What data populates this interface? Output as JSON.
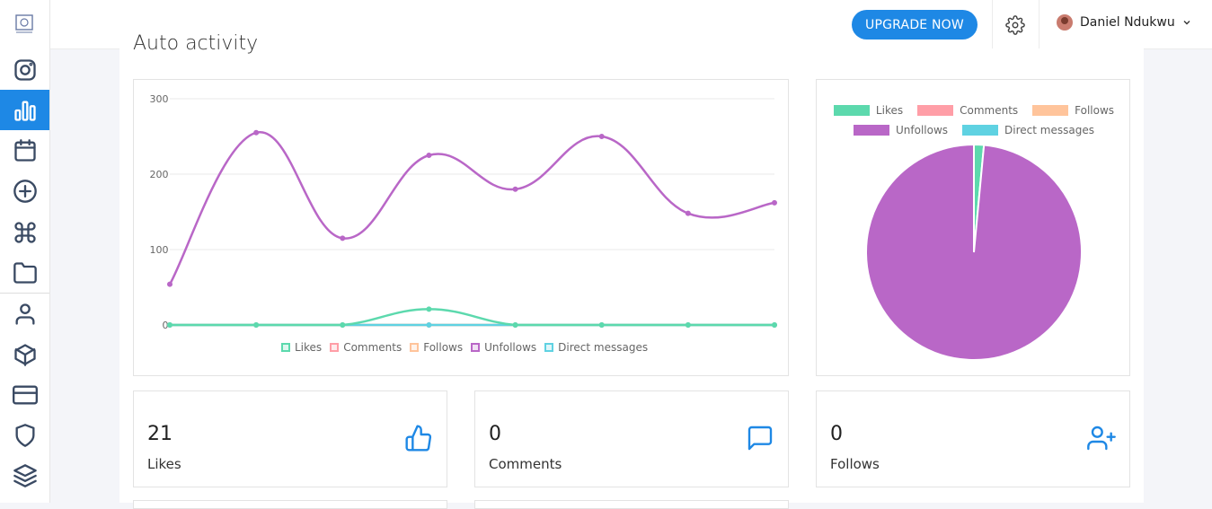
{
  "topbar": {
    "upgrade_label": "UPGRADE NOW",
    "user_name": "Daniel Ndukwu"
  },
  "sidebar": {
    "items": [
      {
        "icon": "instagram-icon"
      },
      {
        "icon": "bar-chart-icon",
        "active": true
      },
      {
        "icon": "calendar-icon"
      },
      {
        "icon": "plus-circle-icon"
      },
      {
        "icon": "command-icon"
      },
      {
        "icon": "folder-icon"
      },
      {
        "icon": "user-icon"
      },
      {
        "icon": "box-icon"
      },
      {
        "icon": "credit-card-icon"
      },
      {
        "icon": "shield-icon"
      },
      {
        "icon": "layers-icon"
      }
    ]
  },
  "section": {
    "title": "Auto activity"
  },
  "chart_data": [
    {
      "type": "line",
      "title": "",
      "ylim": [
        0,
        300
      ],
      "y_ticks": [
        "0",
        "100",
        "200",
        "300"
      ],
      "x": [
        1,
        2,
        3,
        4,
        5,
        6,
        7,
        8
      ],
      "series": [
        {
          "name": "Likes",
          "color": "#5cd9ad",
          "values": [
            0,
            0,
            0,
            21,
            0,
            0,
            0,
            0
          ]
        },
        {
          "name": "Comments",
          "color": "#ff9ea7",
          "values": [
            0,
            0,
            0,
            0,
            0,
            0,
            0,
            0
          ]
        },
        {
          "name": "Follows",
          "color": "#ffc49b",
          "values": [
            0,
            0,
            0,
            0,
            0,
            0,
            0,
            0
          ]
        },
        {
          "name": "Unfollows",
          "color": "#b967c7",
          "values": [
            54,
            255,
            115,
            225,
            180,
            250,
            148,
            162
          ]
        },
        {
          "name": "Direct messages",
          "color": "#5fd2e2",
          "values": [
            0,
            0,
            0,
            0,
            0,
            0,
            0,
            0
          ]
        }
      ],
      "legend": "bottom",
      "grid": true
    },
    {
      "type": "pie",
      "labels": [
        "Likes",
        "Comments",
        "Follows",
        "Unfollows",
        "Direct messages"
      ],
      "colors": [
        "#5cd9ad",
        "#ff9ea7",
        "#ffc49b",
        "#b967c7",
        "#5fd2e2"
      ],
      "values": [
        21,
        0,
        0,
        1389,
        0
      ],
      "legend": "top"
    }
  ],
  "stats": [
    {
      "value": "21",
      "label": "Likes",
      "icon": "thumbs-up-icon"
    },
    {
      "value": "0",
      "label": "Comments",
      "icon": "message-square-icon"
    },
    {
      "value": "0",
      "label": "Follows",
      "icon": "user-plus-icon"
    }
  ]
}
